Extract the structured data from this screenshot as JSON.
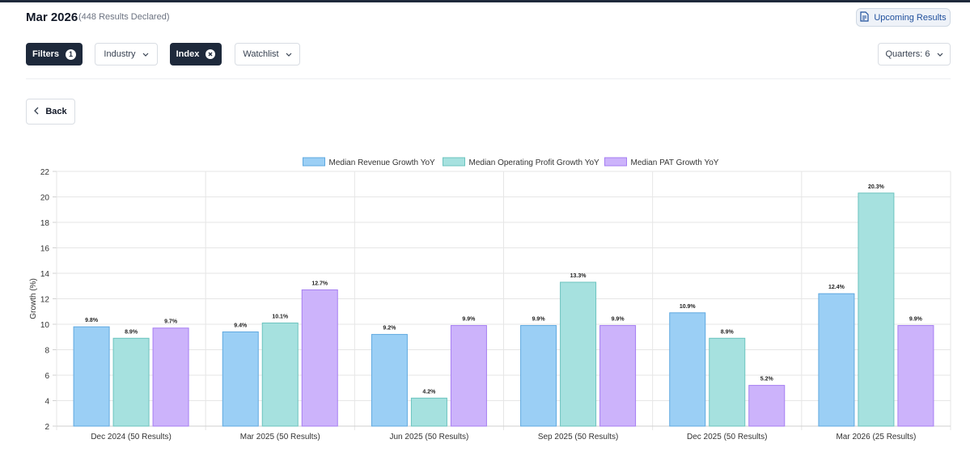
{
  "header": {
    "title": "Mar 2026",
    "subtitle": "(448 Results Declared)",
    "upcoming_label": "Upcoming Results"
  },
  "toolbar": {
    "filters_label": "Filters",
    "filters_count": "1",
    "industry_label": "Industry",
    "index_label": "Index",
    "watchlist_label": "Watchlist",
    "quarters_label": "Quarters: 6"
  },
  "back_label": "Back",
  "chart_data": {
    "type": "bar",
    "categories": [
      "Dec 2024 (50 Results)",
      "Mar 2025 (50 Results)",
      "Jun 2025 (50 Results)",
      "Sep 2025 (50 Results)",
      "Dec 2025 (50 Results)",
      "Mar 2026 (25 Results)"
    ],
    "series": [
      {
        "name": "Median Revenue Growth YoY",
        "values": [
          9.8,
          9.4,
          9.2,
          9.9,
          10.9,
          12.4
        ],
        "labels": [
          "9.8%",
          "9.4%",
          "9.2%",
          "9.9%",
          "10.9%",
          "12.4%"
        ],
        "fill": "#9bcff5",
        "stroke": "#5fa9e0"
      },
      {
        "name": "Median Operating Profit Growth YoY",
        "values": [
          8.9,
          10.1,
          4.2,
          13.3,
          8.9,
          20.3
        ],
        "labels": [
          "8.9%",
          "10.1%",
          "4.2%",
          "13.3%",
          "8.9%",
          "20.3%"
        ],
        "fill": "#a6e1df",
        "stroke": "#6cc4bf"
      },
      {
        "name": "Median PAT Growth YoY",
        "values": [
          9.7,
          12.7,
          9.9,
          9.9,
          5.2,
          9.9
        ],
        "labels": [
          "9.7%",
          "12.7%",
          "9.9%",
          "9.9%",
          "5.2%",
          "9.9%"
        ],
        "fill": "#ccb3fb",
        "stroke": "#a67ef2"
      }
    ],
    "ylabel": "Growth (%)",
    "ylim": [
      2,
      22
    ],
    "yticks": [
      "2",
      "4",
      "6",
      "8",
      "10",
      "12",
      "14",
      "16",
      "18",
      "20",
      "22"
    ],
    "grid": true,
    "legend_position": "top"
  }
}
